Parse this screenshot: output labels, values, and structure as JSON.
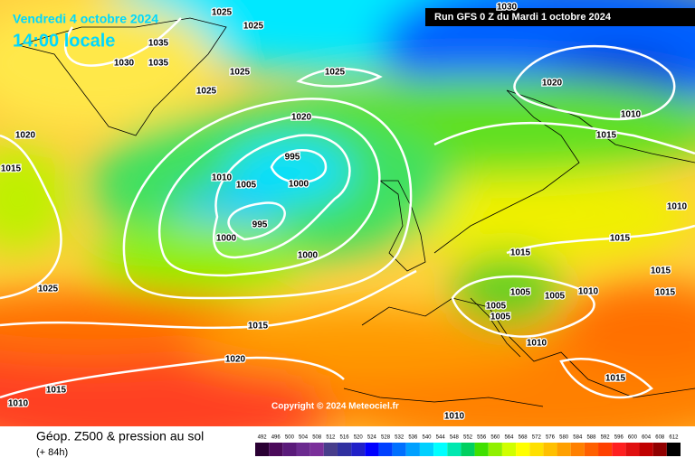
{
  "header": {
    "date": "Vendredi 4 octobre 2024",
    "time": "14:00 locale",
    "run": "Run GFS 0 Z du Mardi 1 octobre 2024"
  },
  "copyright": "Copyright © 2024 Meteociel.fr",
  "footer": {
    "title": "Géop. Z500 & pression au sol",
    "lead": "(+ 84h)"
  },
  "legend": {
    "labels": [
      492,
      496,
      500,
      504,
      508,
      512,
      516,
      520,
      524,
      528,
      532,
      536,
      540,
      544,
      548,
      552,
      556,
      560,
      564,
      568,
      572,
      576,
      580,
      584,
      588,
      592,
      596,
      600,
      604,
      608,
      612
    ],
    "colors": [
      "#2a0033",
      "#4b0a5a",
      "#5a1a7a",
      "#6b2a8f",
      "#7a2f9a",
      "#483d8b",
      "#3030a0",
      "#2020c8",
      "#0000ff",
      "#0040ff",
      "#0070ff",
      "#00a0ff",
      "#00d0ff",
      "#00ffff",
      "#00e8b0",
      "#00d060",
      "#40e000",
      "#90f000",
      "#d0ff00",
      "#ffff00",
      "#ffe000",
      "#ffc000",
      "#ffa000",
      "#ff8000",
      "#ff6000",
      "#ff4000",
      "#ff2020",
      "#e01010",
      "#c00000",
      "#900000",
      "#000000"
    ]
  },
  "isobar_labels": [
    1025,
    1025,
    1035,
    1030,
    1035,
    1025,
    1025,
    1025,
    1020,
    1020,
    995,
    1015,
    1010,
    1005,
    1000,
    995,
    1000,
    1000,
    1025,
    1015,
    1020,
    1015,
    1010,
    1010,
    1030,
    1020,
    1010,
    1015,
    1010,
    1015,
    1015,
    1015,
    1015,
    1010,
    1005,
    1005,
    1005,
    1005,
    1010,
    1015
  ]
}
